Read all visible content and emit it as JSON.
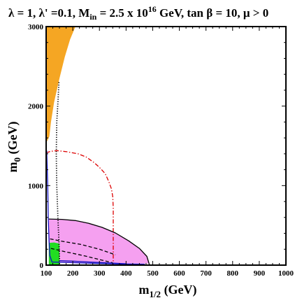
{
  "chart_data": {
    "type": "area",
    "title": {
      "lambda": "λ = 1, λ' =0.1, M",
      "min_sub": "in",
      "mid": " = 2.5 x 10",
      "exp": "16",
      "rest": " GeV, tan β = 10,  μ > 0"
    },
    "xlabel": {
      "main": "m",
      "sub": "1/2",
      "unit": " (GeV)"
    },
    "ylabel": {
      "main": "m",
      "sub": "0",
      "unit": " (GeV)"
    },
    "xlim": [
      100,
      1000
    ],
    "ylim": [
      0,
      3000
    ],
    "x_ticks": [
      "100",
      "200",
      "300",
      "400",
      "500",
      "600",
      "700",
      "800",
      "900",
      "1000"
    ],
    "y_ticks": [
      "0",
      "1000",
      "2000",
      "3000"
    ],
    "regions": [
      {
        "kind": "orange-region",
        "color": "#F5A623",
        "points": [
          [
            100,
            3000
          ],
          [
            210,
            3000
          ],
          [
            190,
            2840
          ],
          [
            170,
            2620
          ],
          [
            150,
            2350
          ],
          [
            130,
            2050
          ],
          [
            118,
            1800
          ],
          [
            112,
            1620
          ],
          [
            104,
            1560
          ],
          [
            100,
            1560
          ]
        ]
      },
      {
        "kind": "pink-region",
        "color": "#F5A0F0",
        "points": [
          [
            110,
            580
          ],
          [
            160,
            575
          ],
          [
            210,
            560
          ],
          [
            260,
            525
          ],
          [
            310,
            475
          ],
          [
            360,
            405
          ],
          [
            410,
            305
          ],
          [
            450,
            210
          ],
          [
            478,
            110
          ],
          [
            488,
            20
          ],
          [
            340,
            20
          ],
          [
            200,
            25
          ],
          [
            130,
            40
          ],
          [
            110,
            80
          ]
        ]
      },
      {
        "kind": "green-region",
        "color": "#22DD22",
        "points": [
          [
            110,
            280
          ],
          [
            130,
            285
          ],
          [
            150,
            270
          ],
          [
            150,
            0
          ],
          [
            110,
            0
          ]
        ]
      }
    ],
    "lines": [
      {
        "kind": "black-dotted-line",
        "color": "#000000",
        "style": "dotted",
        "points": [
          [
            148,
            2300
          ],
          [
            145,
            2100
          ],
          [
            140,
            1800
          ],
          [
            138,
            1400
          ],
          [
            140,
            1000
          ],
          [
            144,
            600
          ],
          [
            148,
            300
          ],
          [
            150,
            100
          ],
          [
            150,
            0
          ]
        ]
      },
      {
        "kind": "red-dash-dot-line",
        "color": "#DD0000",
        "style": "dashdot",
        "points": [
          [
            100,
            1410
          ],
          [
            115,
            1430
          ],
          [
            140,
            1440
          ],
          [
            180,
            1425
          ],
          [
            220,
            1400
          ],
          [
            250,
            1360
          ],
          [
            280,
            1290
          ],
          [
            300,
            1230
          ],
          [
            322,
            1150
          ],
          [
            335,
            1050
          ],
          [
            345,
            960
          ],
          [
            350,
            860
          ],
          [
            352,
            720
          ],
          [
            352,
            500
          ],
          [
            352,
            250
          ],
          [
            352,
            0
          ]
        ]
      },
      {
        "kind": "black-dashed-line",
        "color": "#000000",
        "style": "dashed",
        "points": [
          [
            115,
            330
          ],
          [
            160,
            300
          ],
          [
            230,
            260
          ],
          [
            300,
            200
          ],
          [
            360,
            130
          ]
        ]
      },
      {
        "kind": "black-dashed-line",
        "color": "#000000",
        "style": "dashed",
        "points": [
          [
            118,
            210
          ],
          [
            170,
            170
          ],
          [
            240,
            120
          ],
          [
            300,
            70
          ],
          [
            350,
            30
          ]
        ]
      },
      {
        "kind": "blue-line",
        "color": "#1010C0",
        "style": "solid",
        "points": [
          [
            102,
            1440
          ],
          [
            106,
            1000
          ],
          [
            108,
            600
          ],
          [
            111,
            300
          ],
          [
            114,
            120
          ],
          [
            122,
            40
          ],
          [
            160,
            35
          ],
          [
            260,
            25
          ],
          [
            380,
            15
          ],
          [
            470,
            12
          ]
        ]
      },
      {
        "kind": "blue-line",
        "color": "#1010C0",
        "style": "solid",
        "points": [
          [
            150,
            55
          ],
          [
            200,
            50
          ],
          [
            260,
            40
          ],
          [
            330,
            28
          ],
          [
            400,
            18
          ]
        ]
      },
      {
        "kind": "black-boundary-line",
        "color": "#000000",
        "style": "solid",
        "points": [
          [
            110,
            580
          ],
          [
            160,
            575
          ],
          [
            210,
            560
          ],
          [
            260,
            525
          ],
          [
            310,
            475
          ],
          [
            360,
            405
          ],
          [
            410,
            305
          ],
          [
            450,
            210
          ],
          [
            478,
            110
          ],
          [
            488,
            0
          ]
        ]
      }
    ]
  }
}
